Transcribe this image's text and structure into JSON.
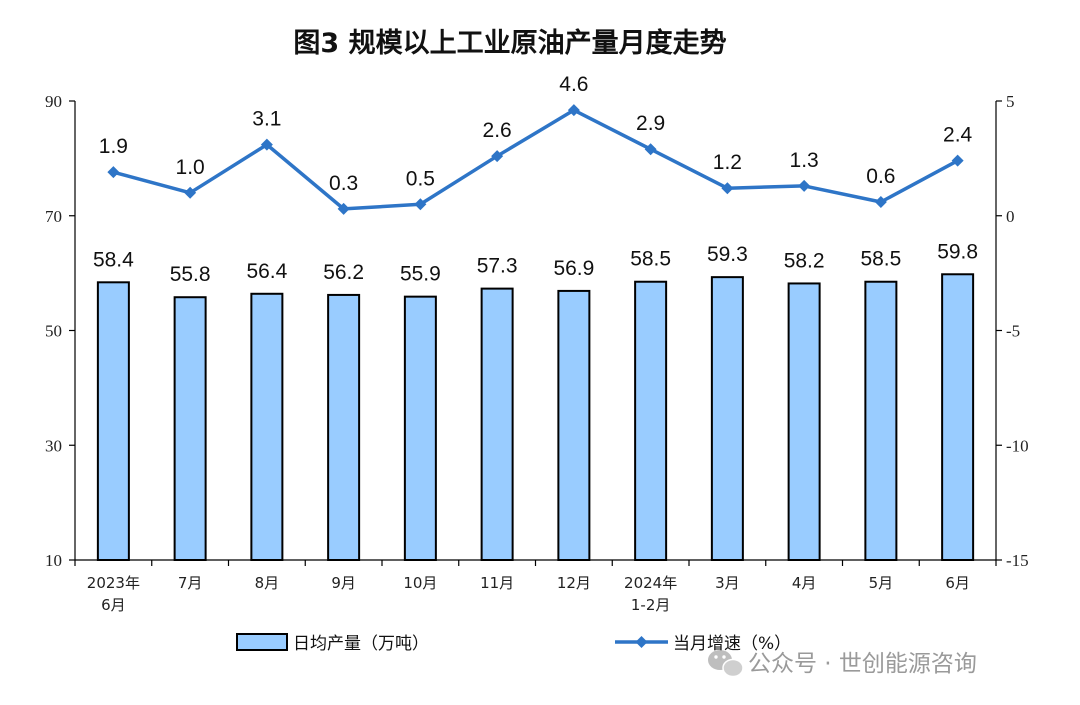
{
  "chart_data": {
    "type": "bar+line",
    "title": "图3  规模以上工业原油产量月度走势",
    "categories": [
      [
        "2023年",
        "6月"
      ],
      [
        "7月"
      ],
      [
        "8月"
      ],
      [
        "9月"
      ],
      [
        "10月"
      ],
      [
        "11月"
      ],
      [
        "12月"
      ],
      [
        "2024年",
        "1-2月"
      ],
      [
        "3月"
      ],
      [
        "4月"
      ],
      [
        "5月"
      ],
      [
        "6月"
      ]
    ],
    "series": [
      {
        "name": "日均产量（万吨）",
        "type": "bar",
        "axis": "left",
        "color": "#99ccff",
        "values": [
          58.4,
          55.8,
          56.4,
          56.2,
          55.9,
          57.3,
          56.9,
          58.5,
          59.3,
          58.2,
          58.5,
          59.8
        ]
      },
      {
        "name": "当月增速（%）",
        "type": "line",
        "axis": "right",
        "color": "#2e75c7",
        "values": [
          1.9,
          1.0,
          3.1,
          0.3,
          0.5,
          2.6,
          4.6,
          2.9,
          1.2,
          1.3,
          0.6,
          2.4
        ]
      }
    ],
    "y_left": {
      "min": 10,
      "max": 90,
      "ticks": [
        "10",
        "30",
        "50",
        "70",
        "90"
      ]
    },
    "y_right": {
      "min": -15,
      "max": 5,
      "ticks": [
        "-15",
        "-10",
        "-5",
        "0",
        "5"
      ]
    },
    "grid": false,
    "legend": "bottom"
  },
  "watermark": "公众号 · 世创能源咨询"
}
